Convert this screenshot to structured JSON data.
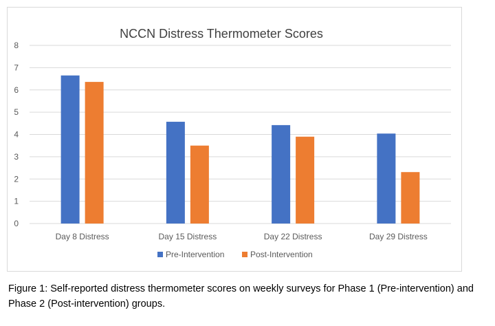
{
  "chart_data": {
    "type": "bar",
    "title": "NCCN Distress Thermometer Scores",
    "xlabel": "",
    "ylabel": "",
    "categories": [
      "Day 8 Distress",
      "Day 15 Distress",
      "Day 22 Distress",
      "Day 29 Distress"
    ],
    "series": [
      {
        "name": "Pre-Intervention",
        "values": [
          6.65,
          4.57,
          4.42,
          4.04
        ],
        "color": "#4472c4"
      },
      {
        "name": "Post-Intervention",
        "values": [
          6.36,
          3.5,
          3.9,
          2.31
        ],
        "color": "#ed7d31"
      }
    ],
    "ylim": [
      0,
      8
    ],
    "yticks": [
      0,
      1,
      2,
      3,
      4,
      5,
      6,
      7,
      8
    ],
    "grid": true,
    "legend": "bottom"
  },
  "caption": "Figure 1: Self-reported distress thermometer scores on weekly surveys for Phase 1 (Pre-intervention) and Phase 2 (Post-intervention) groups."
}
